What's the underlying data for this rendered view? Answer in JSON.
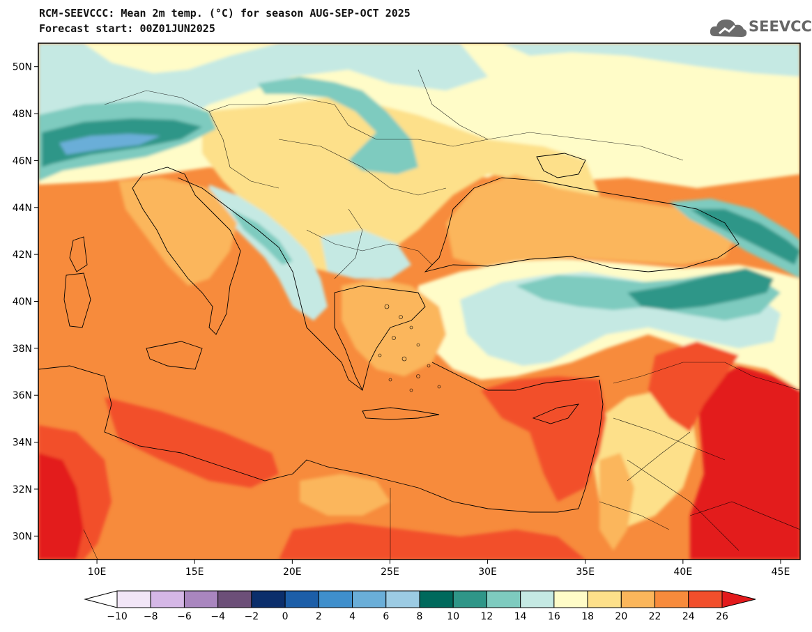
{
  "header": {
    "title_line1": "RCM-SEEVCCC: Mean 2m temp. (°C) for season AUG-SEP-OCT 2025",
    "title_line2": "Forecast start: 00Z01JUN2025"
  },
  "logo": {
    "text": "SEEVCCC",
    "icon": "cloud-icon"
  },
  "map": {
    "lon_range": [
      7,
      46
    ],
    "lat_range": [
      29,
      51
    ],
    "lat_ticks": [
      {
        "value": 50,
        "label": "50N"
      },
      {
        "value": 48,
        "label": "48N"
      },
      {
        "value": 46,
        "label": "46N"
      },
      {
        "value": 44,
        "label": "44N"
      },
      {
        "value": 42,
        "label": "42N"
      },
      {
        "value": 40,
        "label": "40N"
      },
      {
        "value": 38,
        "label": "38N"
      },
      {
        "value": 36,
        "label": "36N"
      },
      {
        "value": 34,
        "label": "34N"
      },
      {
        "value": 32,
        "label": "32N"
      },
      {
        "value": 30,
        "label": "30N"
      }
    ],
    "lon_ticks": [
      {
        "value": 10,
        "label": "10E"
      },
      {
        "value": 15,
        "label": "15E"
      },
      {
        "value": 20,
        "label": "20E"
      },
      {
        "value": 25,
        "label": "25E"
      },
      {
        "value": 30,
        "label": "30E"
      },
      {
        "value": 35,
        "label": "35E"
      },
      {
        "value": 40,
        "label": "40E"
      },
      {
        "value": 45,
        "label": "45E"
      }
    ]
  },
  "colorbar": {
    "labels": [
      "−10",
      "−8",
      "−6",
      "−4",
      "−2",
      "0",
      "2",
      "4",
      "6",
      "8",
      "10",
      "12",
      "14",
      "16",
      "18",
      "20",
      "22",
      "24",
      "26"
    ],
    "below_color": "#ffffff",
    "above_color": "#e31a1c",
    "colors": [
      "#f2e6f7",
      "#d5b7e6",
      "#a986bf",
      "#6c4f78",
      "#0b2e6b",
      "#1c5ea8",
      "#3f8fcc",
      "#6aaed8",
      "#9ccbe3",
      "#00695c",
      "#2f9688",
      "#7ecbbf",
      "#c5e9e3",
      "#fffcc8",
      "#fde08a",
      "#fbb65b",
      "#f78b3c",
      "#f24f2c"
    ]
  }
}
